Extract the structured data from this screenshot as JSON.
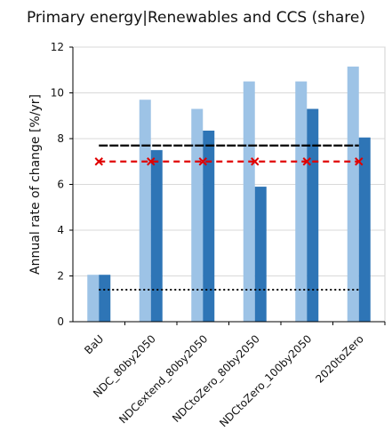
{
  "chart_data": {
    "type": "bar",
    "title": "Primary energy|Renewables and CCS (share)",
    "xlabel": "",
    "ylabel": "Annual rate of change [%/yr]",
    "ylim": [
      0,
      12
    ],
    "yticks": [
      0,
      2,
      4,
      6,
      8,
      10,
      12
    ],
    "grid": true,
    "categories": [
      "BaU",
      "NDC_80by2050",
      "NDCextend_80by2050",
      "NDCtoZero_80by2050",
      "NDCtoZero_100by2050",
      "2020toZero"
    ],
    "series": [
      {
        "values": [
          2.05,
          9.7,
          9.3,
          10.5,
          10.5,
          11.15
        ],
        "color": "#9dc3e6"
      },
      {
        "values": [
          2.05,
          7.5,
          8.35,
          5.9,
          9.3,
          8.05
        ],
        "color": "#2e75b6"
      }
    ],
    "reference_lines": [
      {
        "value": 7.7,
        "style": "dashed",
        "color": "#000000"
      },
      {
        "value": 7.0,
        "style": "dashed-x-markers",
        "color": "#e00000"
      },
      {
        "value": 1.4,
        "style": "dotted",
        "color": "#000000"
      }
    ]
  }
}
